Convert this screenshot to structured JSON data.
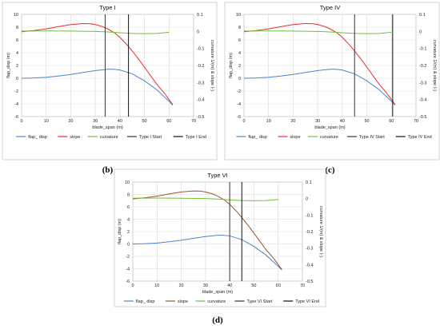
{
  "chart_data": [
    {
      "type": "line",
      "letter": "(b)",
      "title": "Type I",
      "xlabel": "blade_span  (m)",
      "ylabel": "flap_disp  (m)",
      "y2label": "curvature 1/(m) & slope (-)",
      "xlim": [
        0,
        70
      ],
      "ylim": [
        -6,
        10
      ],
      "y2lim": [
        -0.5,
        0.1
      ],
      "xticks": [
        0,
        10,
        20,
        30,
        40,
        50,
        60,
        70
      ],
      "yticks": [
        -6,
        -4,
        -2,
        0,
        2,
        4,
        6,
        8,
        10
      ],
      "y2ticks": [
        0.1,
        0,
        -0.1,
        -0.2,
        -0.3,
        -0.4,
        -0.5
      ],
      "grid": true,
      "legend_position": "bottom",
      "series": [
        {
          "name": "flap_ disp",
          "axis": "left",
          "color": "#4a86c8",
          "x": [
            0,
            5,
            10,
            15,
            20,
            25,
            30,
            35,
            37,
            40,
            45,
            50,
            55,
            60,
            61.5
          ],
          "y": [
            0,
            0.05,
            0.15,
            0.35,
            0.6,
            0.9,
            1.2,
            1.4,
            1.42,
            1.3,
            0.7,
            -0.4,
            -1.8,
            -3.6,
            -4.2
          ]
        },
        {
          "name": "slope",
          "axis": "right",
          "color": "#e8302e",
          "x": [
            0,
            5,
            10,
            15,
            20,
            25,
            28,
            30,
            33,
            35,
            38,
            40,
            43,
            45,
            48,
            50,
            53,
            55,
            58,
            60,
            61.5
          ],
          "y": [
            -0.002,
            0.005,
            0.015,
            0.028,
            0.04,
            0.046,
            0.045,
            0.04,
            0.028,
            0.015,
            -0.01,
            -0.035,
            -0.08,
            -0.115,
            -0.17,
            -0.21,
            -0.27,
            -0.31,
            -0.36,
            -0.4,
            -0.43
          ]
        },
        {
          "name": "curvature",
          "axis": "right",
          "color": "#6fbf3c",
          "x": [
            0,
            10,
            20,
            30,
            35,
            40,
            45,
            50,
            55,
            58,
            60
          ],
          "y": [
            0.002,
            0.003,
            0.002,
            0.0,
            -0.003,
            -0.008,
            -0.012,
            -0.013,
            -0.012,
            -0.008,
            -0.005
          ]
        }
      ],
      "markers": [
        {
          "name": "Type I Start",
          "x": 34,
          "color": "#333333"
        },
        {
          "name": "Type I End",
          "x": 43.5,
          "color": "#111111"
        }
      ]
    },
    {
      "type": "line",
      "letter": "(c)",
      "title": "Type IV",
      "xlabel": "blade_span  (m)",
      "ylabel": "flap_disp  (m)",
      "y2label": "curvature 1/(m) & slope (-)",
      "xlim": [
        0,
        70
      ],
      "ylim": [
        -6,
        10
      ],
      "y2lim": [
        -0.5,
        0.1
      ],
      "xticks": [
        0,
        10,
        20,
        30,
        40,
        50,
        60,
        70
      ],
      "yticks": [
        -6,
        -4,
        -2,
        0,
        2,
        4,
        6,
        8,
        10
      ],
      "y2ticks": [
        0.1,
        0,
        -0.1,
        -0.2,
        -0.3,
        -0.4,
        -0.5
      ],
      "grid": true,
      "legend_position": "bottom",
      "series": [
        {
          "name": "flap_ disp",
          "axis": "left",
          "color": "#4a86c8",
          "x": [
            0,
            5,
            10,
            15,
            20,
            25,
            30,
            35,
            37,
            40,
            45,
            50,
            55,
            60,
            61.5
          ],
          "y": [
            0,
            0.05,
            0.15,
            0.35,
            0.6,
            0.9,
            1.2,
            1.4,
            1.42,
            1.3,
            0.7,
            -0.4,
            -1.8,
            -3.6,
            -4.2
          ]
        },
        {
          "name": "slope",
          "axis": "right",
          "color": "#e8302e",
          "x": [
            0,
            5,
            10,
            15,
            20,
            25,
            28,
            30,
            33,
            35,
            38,
            40,
            43,
            45,
            48,
            50,
            53,
            55,
            58,
            60,
            61.5
          ],
          "y": [
            -0.002,
            0.005,
            0.015,
            0.028,
            0.04,
            0.046,
            0.045,
            0.04,
            0.028,
            0.015,
            -0.01,
            -0.035,
            -0.08,
            -0.115,
            -0.17,
            -0.21,
            -0.27,
            -0.31,
            -0.36,
            -0.4,
            -0.43
          ]
        },
        {
          "name": "curvature",
          "axis": "right",
          "color": "#6fbf3c",
          "x": [
            0,
            10,
            20,
            30,
            35,
            40,
            45,
            50,
            55,
            58,
            60
          ],
          "y": [
            0.002,
            0.003,
            0.002,
            0.0,
            -0.003,
            -0.008,
            -0.012,
            -0.013,
            -0.012,
            -0.008,
            -0.005
          ]
        }
      ],
      "markers": [
        {
          "name": "Type IV Start",
          "x": 45,
          "color": "#333333"
        },
        {
          "name": "Type IV End",
          "x": 60.5,
          "color": "#111111"
        }
      ]
    },
    {
      "type": "line",
      "letter": "(d)",
      "title": "Type VI",
      "xlabel": "blade_span  (m)",
      "ylabel": "flap_disp  (m)",
      "y2label": "curvature 1/(m) & slope (-)",
      "xlim": [
        0,
        70
      ],
      "ylim": [
        -6,
        10
      ],
      "y2lim": [
        -0.5,
        0.1
      ],
      "xticks": [
        0,
        10,
        20,
        30,
        40,
        50,
        60,
        70
      ],
      "yticks": [
        -6,
        -4,
        -2,
        0,
        2,
        4,
        6,
        8,
        10
      ],
      "y2ticks": [
        0.1,
        0,
        -0.1,
        -0.2,
        -0.3,
        -0.4,
        -0.5
      ],
      "grid": true,
      "legend_position": "bottom",
      "series": [
        {
          "name": "flap_ disp",
          "axis": "left",
          "color": "#4a86c8",
          "x": [
            0,
            5,
            10,
            15,
            20,
            25,
            30,
            35,
            37,
            40,
            45,
            50,
            55,
            60,
            61.5
          ],
          "y": [
            0,
            0.05,
            0.15,
            0.35,
            0.6,
            0.9,
            1.2,
            1.4,
            1.42,
            1.3,
            0.7,
            -0.4,
            -1.8,
            -3.6,
            -4.2
          ]
        },
        {
          "name": "slope",
          "axis": "right",
          "color": "#a0522d",
          "x": [
            0,
            5,
            10,
            15,
            20,
            25,
            28,
            30,
            33,
            35,
            38,
            40,
            43,
            45,
            48,
            50,
            53,
            55,
            58,
            60,
            61.5
          ],
          "y": [
            -0.002,
            0.005,
            0.015,
            0.028,
            0.04,
            0.046,
            0.045,
            0.04,
            0.028,
            0.015,
            -0.01,
            -0.035,
            -0.08,
            -0.115,
            -0.17,
            -0.21,
            -0.27,
            -0.31,
            -0.36,
            -0.4,
            -0.43
          ]
        },
        {
          "name": "curvature",
          "axis": "right",
          "color": "#6fbf3c",
          "x": [
            0,
            10,
            20,
            30,
            35,
            40,
            45,
            50,
            55,
            58,
            60
          ],
          "y": [
            0.002,
            0.003,
            0.002,
            0.0,
            -0.003,
            -0.008,
            -0.012,
            -0.013,
            -0.012,
            -0.008,
            -0.005
          ]
        }
      ],
      "markers": [
        {
          "name": "Type VI Start",
          "x": 40,
          "color": "#333333"
        },
        {
          "name": "Type VI End",
          "x": 45,
          "color": "#111111"
        }
      ]
    }
  ]
}
